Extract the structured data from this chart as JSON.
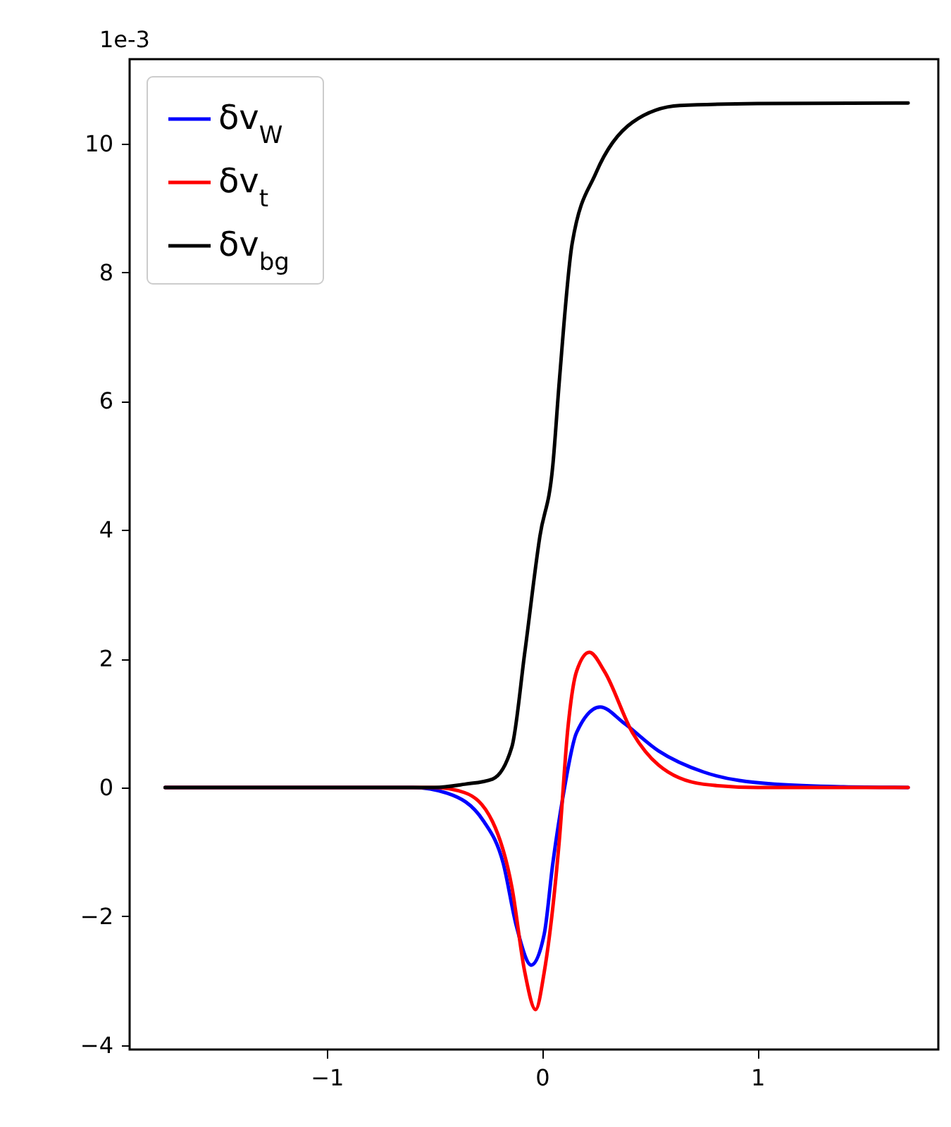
{
  "chart_data": {
    "type": "line",
    "ylabel": "1e-3",
    "xlim": [
      -1.915,
      1.84
    ],
    "ylim": [
      -4.07,
      11.31
    ],
    "xticks": [
      -1,
      0,
      1
    ],
    "yticks": [
      -4,
      -2,
      0,
      2,
      4,
      6,
      8,
      10
    ],
    "grid": false,
    "legend": "top left",
    "series": [
      {
        "name": "δv$_{W}$",
        "color": "#0000ff",
        "x": [
          -1.75,
          -0.6,
          -0.44,
          -0.27,
          -0.18,
          -0.12,
          -0.05,
          0.01,
          0.05,
          0.1,
          0.16,
          0.27,
          0.38,
          0.54,
          0.75,
          1.08,
          1.4,
          1.7
        ],
        "values": [
          0,
          0,
          -0.09,
          -0.53,
          -1.18,
          -2.14,
          -2.76,
          -2.28,
          -1.18,
          -0.09,
          0.85,
          1.25,
          1.0,
          0.57,
          0.24,
          0.05,
          0.01,
          0
        ]
      },
      {
        "name": "δv$_{t}$",
        "color": "#ff0000",
        "x": [
          -1.75,
          -0.5,
          -0.36,
          -0.23,
          -0.14,
          -0.08,
          -0.03,
          0.01,
          0.08,
          0.12,
          0.16,
          0.22,
          0.29,
          0.42,
          0.54,
          0.75,
          1.0,
          1.7
        ],
        "values": [
          0,
          0,
          -0.08,
          -0.53,
          -1.55,
          -2.87,
          -3.45,
          -2.87,
          -0.83,
          0.92,
          1.8,
          2.1,
          1.8,
          0.85,
          0.35,
          0.05,
          0,
          0
        ]
      },
      {
        "name": "δv$_{bg}$",
        "color": "#000000",
        "x": [
          -1.75,
          -0.5,
          -0.36,
          -0.23,
          -0.14,
          -0.08,
          -0.01,
          0.05,
          0.08,
          0.14,
          0.25,
          0.42,
          0.64,
          1.0,
          1.7
        ],
        "values": [
          0,
          0,
          0.05,
          0.13,
          0.63,
          2.1,
          3.9,
          5.0,
          6.3,
          8.45,
          9.54,
          10.33,
          10.59,
          10.62,
          10.63
        ]
      }
    ]
  }
}
